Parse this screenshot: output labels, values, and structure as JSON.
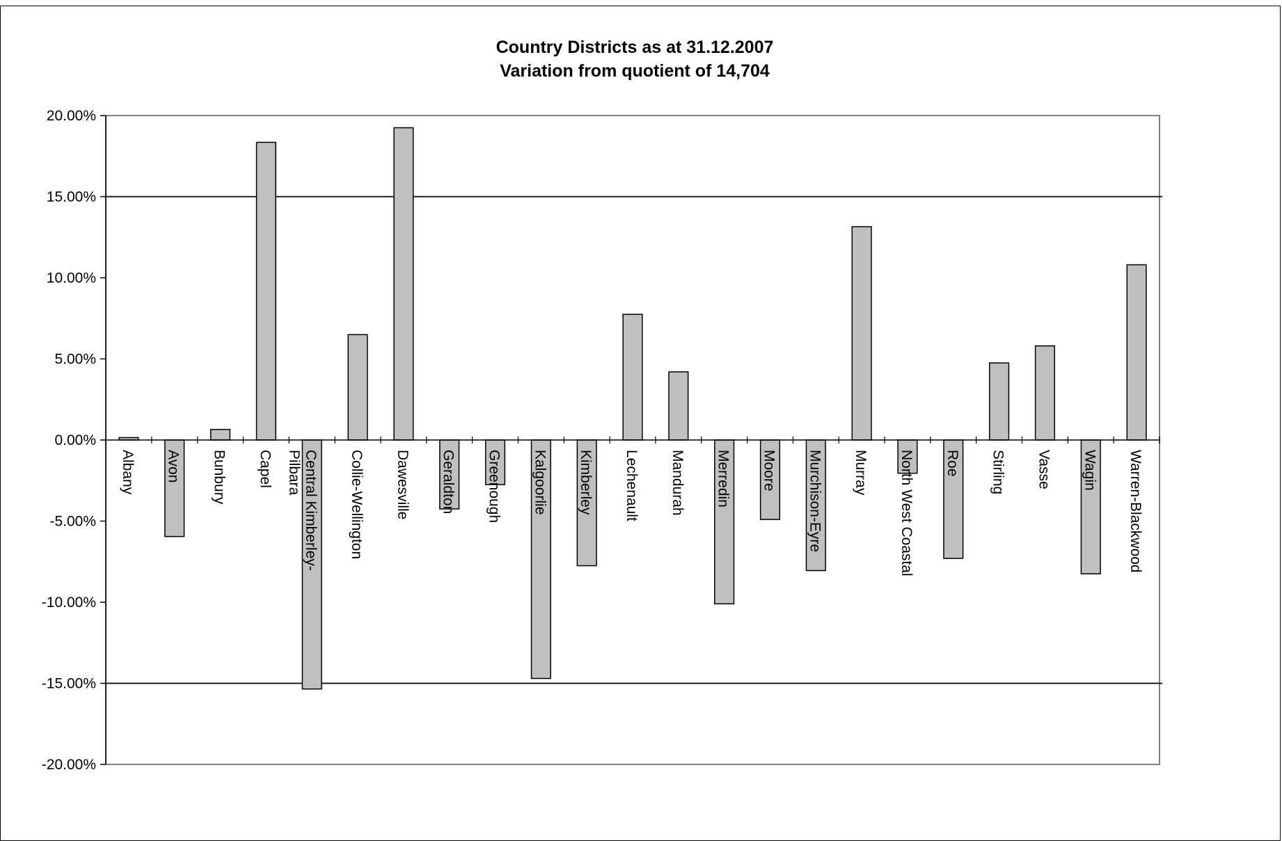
{
  "chart_data": {
    "type": "bar",
    "title_lines": [
      "Country Districts as at 31.12.2007",
      "Variation from quotient of 14,704"
    ],
    "xlabel": "",
    "ylabel": "",
    "ylim": [
      -0.2,
      0.2
    ],
    "y_ticks": [
      0.2,
      0.15,
      0.1,
      0.05,
      0.0,
      -0.05,
      -0.1,
      -0.15,
      -0.2
    ],
    "y_tick_labels": [
      "20.00%",
      "15.00%",
      "10.00%",
      "5.00%",
      "0.00%",
      "-5.00%",
      "-10.00%",
      "-15.00%",
      "-20.00%"
    ],
    "reference_lines": [
      0.15,
      -0.15
    ],
    "grid": false,
    "legend": "none",
    "bar_color": "#c0c0c0",
    "categories": [
      [
        "Albany"
      ],
      [
        "Avon"
      ],
      [
        "Bunbury"
      ],
      [
        "Capel"
      ],
      [
        "Central Kimberley-",
        "Pilbara"
      ],
      [
        "Collie-Wellington"
      ],
      [
        "Dawesville"
      ],
      [
        "Geraldton"
      ],
      [
        "Greenough"
      ],
      [
        "Kalgoorlie"
      ],
      [
        "Kimberley"
      ],
      [
        "Lechenault"
      ],
      [
        "Mandurah"
      ],
      [
        "Merredin"
      ],
      [
        "Moore"
      ],
      [
        "Murchison-Eyre"
      ],
      [
        "Murray"
      ],
      [
        "North West Coastal"
      ],
      [
        "Roe"
      ],
      [
        "Stirling"
      ],
      [
        "Vasse"
      ],
      [
        "Wagin"
      ],
      [
        "Warren-Blackwood"
      ]
    ],
    "values": [
      0.0015,
      -0.0595,
      0.0065,
      0.1835,
      -0.1535,
      0.065,
      0.1925,
      -0.0425,
      -0.0275,
      -0.147,
      -0.0775,
      0.0775,
      0.042,
      -0.101,
      -0.049,
      -0.0805,
      0.1315,
      -0.0205,
      -0.073,
      0.0475,
      0.058,
      -0.0825,
      0.108
    ]
  }
}
